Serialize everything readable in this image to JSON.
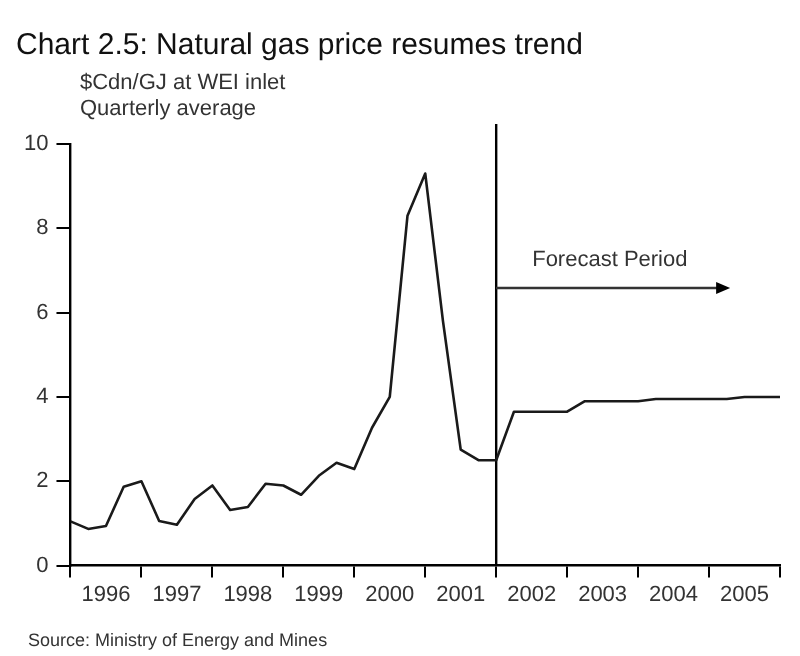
{
  "chart_data": {
    "type": "line",
    "title": "Chart 2.5: Natural gas price resumes trend",
    "ylabel": "$Cdn/GJ at WEI inlet\nQuarterly average",
    "x": [
      1996,
      1996.25,
      1996.5,
      1996.75,
      1997,
      1997.25,
      1997.5,
      1997.75,
      1998,
      1998.25,
      1998.5,
      1998.75,
      1999,
      1999.25,
      1999.5,
      1999.75,
      2000,
      2000.25,
      2000.5,
      2000.75,
      2001,
      2001.25,
      2001.5,
      2001.75,
      2002,
      2002.25,
      2002.5,
      2002.75,
      2003,
      2003.25,
      2003.5,
      2003.75,
      2004,
      2004.25,
      2004.5,
      2004.75,
      2005,
      2005.25,
      2005.5,
      2005.75,
      2006
    ],
    "series": [
      {
        "color": "#1a1a1a",
        "values": [
          1.05,
          0.87,
          0.94,
          1.87,
          2.0,
          1.06,
          0.97,
          1.58,
          1.9,
          1.32,
          1.39,
          1.94,
          1.9,
          1.68,
          2.13,
          2.44,
          2.29,
          3.27,
          4.0,
          8.3,
          9.3,
          5.8,
          2.75,
          2.5,
          2.5,
          3.65,
          3.65,
          3.65,
          3.65,
          3.9,
          3.9,
          3.9,
          3.9,
          3.95,
          3.95,
          3.95,
          3.95,
          3.95,
          4.0,
          4.0,
          4.0
        ]
      }
    ],
    "xlim": [
      1996,
      2006
    ],
    "xticks": [
      {
        "value": 1996,
        "label": null
      },
      {
        "value": 1996.5,
        "label": "1996"
      },
      {
        "value": 1997,
        "label": null
      },
      {
        "value": 1997.5,
        "label": "1997"
      },
      {
        "value": 1998,
        "label": null
      },
      {
        "value": 1998.5,
        "label": "1998"
      },
      {
        "value": 1999,
        "label": null
      },
      {
        "value": 1999.5,
        "label": "1999"
      },
      {
        "value": 2000,
        "label": null
      },
      {
        "value": 2000.5,
        "label": "2000"
      },
      {
        "value": 2001,
        "label": null
      },
      {
        "value": 2001.5,
        "label": "2001"
      },
      {
        "value": 2002,
        "label": null
      },
      {
        "value": 2002.5,
        "label": "2002"
      },
      {
        "value": 2003,
        "label": null
      },
      {
        "value": 2003.5,
        "label": "2003"
      },
      {
        "value": 2004,
        "label": null
      },
      {
        "value": 2004.5,
        "label": "2004"
      },
      {
        "value": 2005,
        "label": null
      },
      {
        "value": 2005.5,
        "label": "2005"
      },
      {
        "value": 2006,
        "label": null
      }
    ],
    "ylim": [
      0,
      10
    ],
    "yticks": [
      0,
      2,
      4,
      6,
      8,
      10
    ],
    "ref_lines": [
      {
        "axis": "x",
        "value": 2002,
        "color": "#000000"
      }
    ],
    "annotations": [
      {
        "text": "Forecast Period",
        "x": 2002,
        "y": 6.6
      },
      "Source: Ministry of Energy and Mines"
    ],
    "grid": false,
    "legend": false,
    "marker": "none",
    "line_style": "solid"
  }
}
